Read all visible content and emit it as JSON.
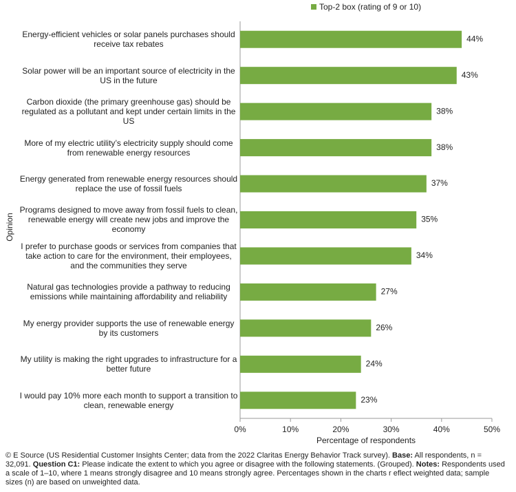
{
  "chart_data": {
    "type": "bar",
    "orientation": "horizontal",
    "categories": [
      "Energy-efficient vehicles or solar panels purchases should receive tax rebates",
      "Solar power will be an important source of electricity in the US in the future",
      "Carbon dioxide (the primary greenhouse gas) should be regulated as a pollutant and kept under certain limits in the US",
      "More of my electric utility’s electricity supply should come from renewable energy resources",
      "Energy generated from renewable energy resources should replace the use of fossil fuels",
      "Programs designed to move away from fossil fuels to clean, renewable energy will create new jobs and improve the economy",
      "I prefer to purchase goods or services from companies that take action to care for the environment, their employees, and the communities they serve",
      "Natural gas technologies provide a pathway to reducing emissions while maintaining affordability and reliability",
      "My energy provider supports the use of renewable energy by its customers",
      "My utility is making the right upgrades to infrastructure for a better future",
      "I would pay 10% more each month to support a transition to clean, renewable energy"
    ],
    "series": [
      {
        "name": "Top-2 box (rating of 9 or 10)",
        "color": "#77ab43",
        "values": [
          44,
          43,
          38,
          38,
          37,
          35,
          34,
          27,
          26,
          24,
          23
        ],
        "value_labels": [
          "44%",
          "43%",
          "38%",
          "38%",
          "37%",
          "35%",
          "34%",
          "27%",
          "26%",
          "24%",
          "23%"
        ]
      }
    ],
    "x_label": "Percentage of respondents",
    "y_label": "Opinion",
    "xlim": [
      0,
      50
    ],
    "xticks": [
      {
        "value": 0,
        "label": "0%"
      },
      {
        "value": 10,
        "label": "10%"
      },
      {
        "value": 20,
        "label": "20%"
      },
      {
        "value": 30,
        "label": "30%"
      },
      {
        "value": 40,
        "label": "40%"
      },
      {
        "value": 50,
        "label": "50%"
      }
    ],
    "grid": false,
    "legend": "top",
    "footnote": [
      "© E Source (US Residential Customer Insights Center; data from the 2022 Claritas Energy Behavior Track survey).",
      "Base:",
      "All respondents, n = 32,091.",
      "Question C1:",
      "Please indicate the extent to which you agree or disagree with the following statements. (Grouped).",
      "Notes:",
      "Respondents used a scale of 1–10, where 1 means strongly disagree and 10 means strongly agree. Percentages shown in the charts r eflect weighted data; sample sizes (n) are based on unweighted data."
    ]
  }
}
